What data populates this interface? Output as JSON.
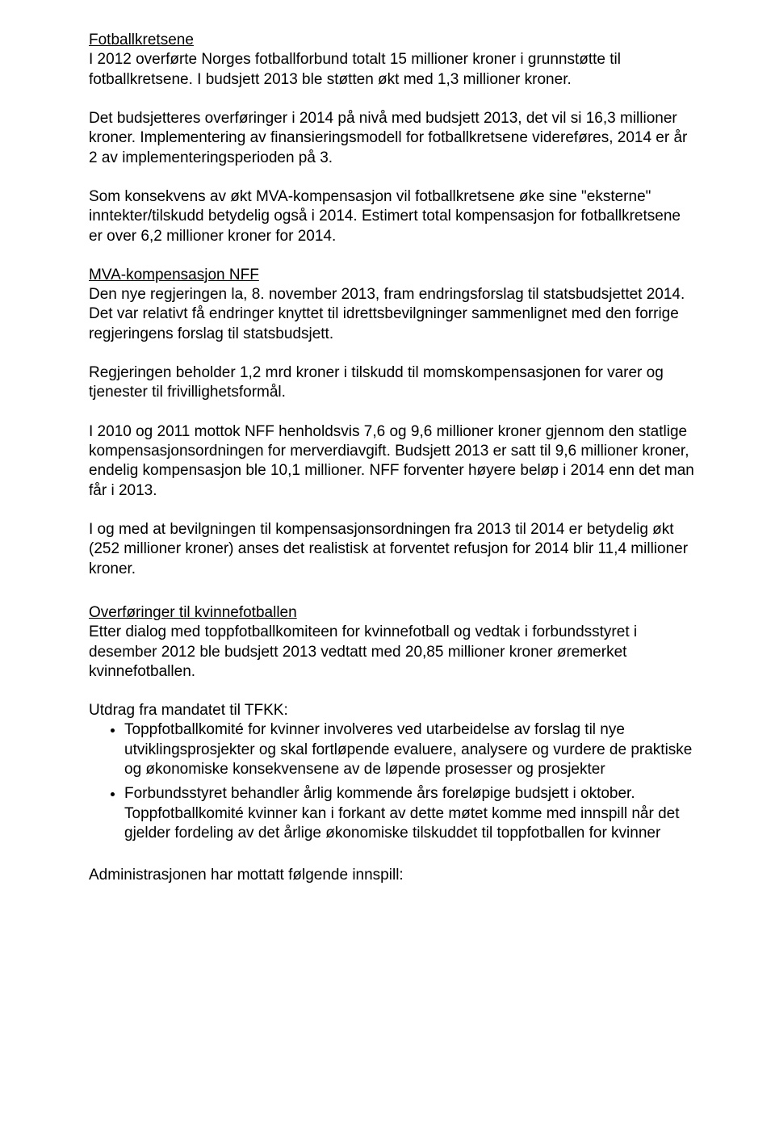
{
  "doc": {
    "sec1": {
      "heading": "Fotballkretsene",
      "p1": "I 2012 overførte Norges fotballforbund totalt 15 millioner kroner i grunnstøtte til fotballkretsene. I budsjett 2013 ble støtten økt med 1,3 millioner kroner.",
      "p2": "Det budsjetteres overføringer i 2014 på nivå med budsjett 2013, det vil si 16,3 millioner kroner. Implementering av finansieringsmodell for fotballkretsene videreføres, 2014 er år 2 av implementeringsperioden på 3.",
      "p3": "Som konsekvens av økt MVA-kompensasjon vil fotballkretsene øke sine \"eksterne\" inntekter/tilskudd betydelig også i 2014. Estimert total kompensasjon for fotballkretsene er over 6,2 millioner kroner for 2014."
    },
    "sec2": {
      "heading": "MVA-kompensasjon NFF",
      "p1": "Den nye regjeringen la, 8. november 2013, fram endringsforslag til statsbudsjettet 2014. Det var relativt få endringer knyttet til idrettsbevilgninger sammenlignet med den forrige regjeringens forslag til statsbudsjett.",
      "p2": "Regjeringen beholder 1,2 mrd kroner i tilskudd til momskompensasjonen for varer og tjenester til frivillighetsformål.",
      "p3": "I 2010 og 2011 mottok NFF henholdsvis 7,6 og 9,6 millioner kroner gjennom den statlige kompensasjonsordningen for merverdiavgift. Budsjett 2013 er satt til 9,6 millioner kroner, endelig kompensasjon ble 10,1 millioner. NFF forventer høyere beløp i 2014 enn det man får i 2013.",
      "p4": "I og med at bevilgningen til kompensasjonsordningen fra 2013 til 2014 er betydelig økt (252 millioner kroner) anses det realistisk at forventet refusjon for 2014 blir 11,4 millioner kroner."
    },
    "sec3": {
      "heading": "Overføringer til kvinnefotballen",
      "p1": "Etter dialog med toppfotballkomiteen for kvinnefotball og vedtak i forbundsstyret i desember 2012 ble budsjett 2013 vedtatt med 20,85 millioner kroner øremerket kvinnefotballen.",
      "p2": "Utdrag fra mandatet til TFKK:",
      "bullets": [
        "Toppfotballkomité for kvinner involveres ved utarbeidelse av forslag til nye utviklingsprosjekter og skal fortløpende evaluere, analysere og vurdere de praktiske og økonomiske konsekvensene av de løpende prosesser og prosjekter",
        "Forbundsstyret behandler årlig kommende års foreløpige budsjett i oktober. Toppfotballkomité kvinner kan i forkant av dette møtet komme med innspill når det gjelder fordeling av det årlige økonomiske tilskuddet til toppfotballen for kvinner"
      ],
      "p3": "Administrasjonen har mottatt følgende innspill:"
    }
  }
}
